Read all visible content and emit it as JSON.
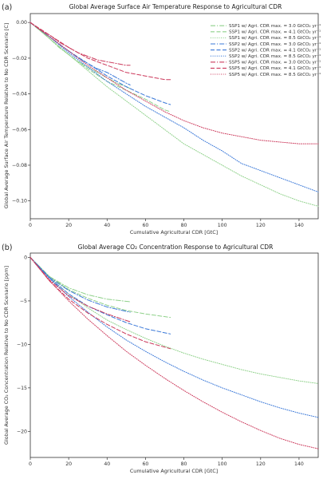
{
  "chart_data": [
    {
      "type": "line",
      "panel_label": "(a)",
      "title": "Global Average Surface Air Temperature Response to Agricultural CDR",
      "xlabel": "Cumulative Agricultural CDR [GtC]",
      "ylabel": "Global Average Surface Air Temperature Relative to No CDR Scenario [C]",
      "xlim": [
        0,
        150
      ],
      "ylim": [
        -0.11,
        0.005
      ],
      "xticks": [
        0,
        20,
        40,
        60,
        80,
        100,
        120,
        140
      ],
      "yticks": [
        0.0,
        -0.02,
        -0.04,
        -0.06,
        -0.08,
        -0.1
      ],
      "ytick_labels": [
        "0.00",
        "−0.02",
        "−0.04",
        "−0.06",
        "−0.08",
        "−0.10"
      ],
      "legend_position": "top-right",
      "series": [
        {
          "name": "SSP1 w/ Agri. CDR max. = 3.0 GtCO₂ yr⁻¹",
          "color": "#8fd18a",
          "style": "dashdot",
          "x": [
            0,
            5,
            10,
            15,
            20,
            25,
            30,
            35,
            40,
            45,
            50,
            52
          ],
          "y": [
            0.0,
            -0.004,
            -0.009,
            -0.014,
            -0.018,
            -0.022,
            -0.025,
            -0.028,
            -0.031,
            -0.034,
            -0.036,
            -0.037
          ]
        },
        {
          "name": "SSP1 w/ Agri. CDR max. = 4.1 GtCO₂ yr⁻¹",
          "color": "#8fd18a",
          "style": "dashed",
          "x": [
            0,
            10,
            20,
            30,
            40,
            50,
            60,
            70,
            73
          ],
          "y": [
            0.0,
            -0.009,
            -0.018,
            -0.026,
            -0.033,
            -0.038,
            -0.043,
            -0.049,
            -0.05
          ]
        },
        {
          "name": "SSP1 w/ Agri. CDR max. = 8.5 GtCO₂ yr⁻¹",
          "color": "#8fd18a",
          "style": "dotted",
          "x": [
            0,
            10,
            20,
            30,
            40,
            50,
            60,
            70,
            80,
            90,
            100,
            110,
            120,
            130,
            140,
            150
          ],
          "y": [
            0.0,
            -0.009,
            -0.018,
            -0.027,
            -0.036,
            -0.044,
            -0.052,
            -0.06,
            -0.068,
            -0.074,
            -0.08,
            -0.086,
            -0.091,
            -0.096,
            -0.1,
            -0.103
          ]
        },
        {
          "name": "SSP2 w/ Agri. CDR max. = 3.0 GtCO₂ yr⁻¹",
          "color": "#3a78d8",
          "style": "dashdot",
          "x": [
            0,
            5,
            10,
            15,
            20,
            25,
            30,
            35,
            40,
            45,
            50,
            52
          ],
          "y": [
            0.0,
            -0.004,
            -0.008,
            -0.012,
            -0.016,
            -0.02,
            -0.023,
            -0.026,
            -0.028,
            -0.031,
            -0.034,
            -0.035
          ]
        },
        {
          "name": "SSP2 w/ Agri. CDR max. = 4.1 GtCO₂ yr⁻¹",
          "color": "#3a78d8",
          "style": "dashed",
          "x": [
            0,
            10,
            20,
            30,
            40,
            50,
            60,
            70,
            73
          ],
          "y": [
            0.0,
            -0.008,
            -0.016,
            -0.023,
            -0.03,
            -0.036,
            -0.041,
            -0.045,
            -0.046
          ]
        },
        {
          "name": "SSP2 w/ Agri. CDR max. = 8.5 GtCO₂ yr⁻¹",
          "color": "#3a78d8",
          "style": "dotted",
          "x": [
            0,
            10,
            20,
            30,
            40,
            50,
            60,
            70,
            80,
            90,
            100,
            110,
            120,
            130,
            140,
            150
          ],
          "y": [
            0.0,
            -0.008,
            -0.017,
            -0.025,
            -0.033,
            -0.04,
            -0.047,
            -0.053,
            -0.059,
            -0.066,
            -0.072,
            -0.079,
            -0.083,
            -0.087,
            -0.091,
            -0.095
          ]
        },
        {
          "name": "SSP5 w/ Agri. CDR max. = 3.0 GtCO₂ yr⁻¹",
          "color": "#cc3a5c",
          "style": "dashdot",
          "x": [
            0,
            5,
            10,
            15,
            20,
            25,
            30,
            35,
            40,
            45,
            50,
            52
          ],
          "y": [
            0.0,
            -0.004,
            -0.007,
            -0.011,
            -0.014,
            -0.017,
            -0.019,
            -0.021,
            -0.022,
            -0.023,
            -0.024,
            -0.024
          ]
        },
        {
          "name": "SSP5 w/ Agri. CDR max. = 4.1 GtCO₂ yr⁻¹",
          "color": "#cc3a5c",
          "style": "dashed",
          "x": [
            0,
            10,
            20,
            30,
            40,
            50,
            60,
            70,
            73
          ],
          "y": [
            0.0,
            -0.007,
            -0.014,
            -0.02,
            -0.024,
            -0.028,
            -0.03,
            -0.032,
            -0.032
          ]
        },
        {
          "name": "SSP5 w/ Agri. CDR max. = 8.5 GtCO₂ yr⁻¹",
          "color": "#cc3a5c",
          "style": "dotted",
          "x": [
            0,
            10,
            20,
            30,
            40,
            50,
            60,
            70,
            80,
            90,
            100,
            110,
            120,
            130,
            140,
            150
          ],
          "y": [
            0.0,
            -0.008,
            -0.016,
            -0.024,
            -0.031,
            -0.038,
            -0.044,
            -0.05,
            -0.055,
            -0.059,
            -0.062,
            -0.064,
            -0.066,
            -0.067,
            -0.068,
            -0.068
          ]
        }
      ]
    },
    {
      "type": "line",
      "panel_label": "(b)",
      "title": "Global Average CO₂ Concentration Response to Agricultural CDR",
      "xlabel": "Cumulative Agricultural CDR [GtC]",
      "ylabel": "Global Average CO₂ Concentration Relative to No CDR Scenario [ppm]",
      "xlim": [
        0,
        150
      ],
      "ylim": [
        -23,
        0.5
      ],
      "xticks": [
        0,
        20,
        40,
        60,
        80,
        100,
        120,
        140
      ],
      "yticks": [
        0,
        -5,
        -10,
        -15,
        -20
      ],
      "ytick_labels": [
        "0",
        "−5",
        "−10",
        "−15",
        "−20"
      ],
      "series": [
        {
          "name": "SSP1 3.0",
          "color": "#8fd18a",
          "style": "dashdot",
          "x": [
            0,
            10,
            20,
            30,
            40,
            52
          ],
          "y": [
            0,
            -2.2,
            -3.5,
            -4.3,
            -4.8,
            -5.1
          ]
        },
        {
          "name": "SSP1 4.1",
          "color": "#8fd18a",
          "style": "dashed",
          "x": [
            0,
            10,
            20,
            30,
            40,
            50,
            60,
            73
          ],
          "y": [
            0,
            -2.2,
            -3.7,
            -4.7,
            -5.5,
            -6.1,
            -6.5,
            -6.9
          ]
        },
        {
          "name": "SSP1 8.5",
          "color": "#8fd18a",
          "style": "dotted",
          "x": [
            0,
            10,
            20,
            30,
            40,
            50,
            60,
            70,
            80,
            90,
            100,
            110,
            120,
            130,
            140,
            150
          ],
          "y": [
            0,
            -2.3,
            -4.2,
            -5.8,
            -7.2,
            -8.3,
            -9.3,
            -10.2,
            -11.0,
            -11.7,
            -12.3,
            -12.9,
            -13.4,
            -13.8,
            -14.2,
            -14.5
          ]
        },
        {
          "name": "SSP2 3.0",
          "color": "#3a78d8",
          "style": "dashdot",
          "x": [
            0,
            10,
            20,
            30,
            40,
            52
          ],
          "y": [
            0,
            -2.3,
            -3.8,
            -4.9,
            -5.7,
            -6.3
          ]
        },
        {
          "name": "SSP2 4.1",
          "color": "#3a78d8",
          "style": "dashed",
          "x": [
            0,
            10,
            20,
            30,
            40,
            50,
            60,
            73
          ],
          "y": [
            0,
            -2.4,
            -4.2,
            -5.6,
            -6.6,
            -7.5,
            -8.2,
            -8.8
          ]
        },
        {
          "name": "SSP2 8.5",
          "color": "#3a78d8",
          "style": "dotted",
          "x": [
            0,
            10,
            20,
            30,
            40,
            50,
            60,
            70,
            80,
            90,
            100,
            110,
            120,
            130,
            140,
            150
          ],
          "y": [
            0,
            -2.4,
            -4.5,
            -6.3,
            -8.0,
            -9.5,
            -10.8,
            -12.0,
            -13.1,
            -14.1,
            -15.0,
            -15.8,
            -16.6,
            -17.3,
            -17.9,
            -18.4
          ]
        },
        {
          "name": "SSP5 3.0",
          "color": "#cc3a5c",
          "style": "dashdot",
          "x": [
            0,
            10,
            20,
            30,
            40,
            52
          ],
          "y": [
            0,
            -2.6,
            -4.4,
            -5.6,
            -6.5,
            -7.4
          ]
        },
        {
          "name": "SSP5 4.1",
          "color": "#cc3a5c",
          "style": "dashed",
          "x": [
            0,
            10,
            20,
            30,
            40,
            50,
            60,
            73
          ],
          "y": [
            0,
            -2.7,
            -4.8,
            -6.4,
            -7.7,
            -8.8,
            -9.7,
            -10.5
          ]
        },
        {
          "name": "SSP5 8.5",
          "color": "#cc3a5c",
          "style": "dotted",
          "x": [
            0,
            10,
            20,
            30,
            40,
            50,
            60,
            70,
            80,
            90,
            100,
            110,
            120,
            130,
            140,
            150
          ],
          "y": [
            0,
            -2.7,
            -5.0,
            -7.1,
            -9.0,
            -10.8,
            -12.4,
            -13.9,
            -15.3,
            -16.6,
            -17.8,
            -18.9,
            -19.9,
            -20.8,
            -21.5,
            -22.0
          ]
        }
      ]
    }
  ]
}
